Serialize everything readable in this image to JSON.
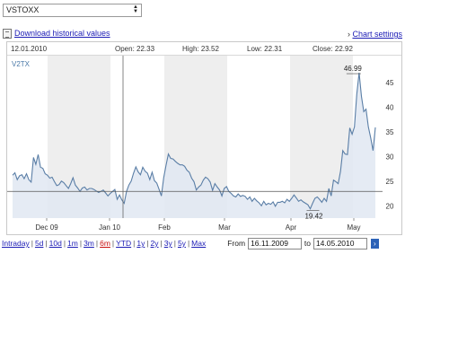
{
  "symbol_select": {
    "value": "VSTOXX",
    "arrows_icon": "up-down-arrows-icon"
  },
  "download": {
    "label": "Download historical values",
    "icon": "document-icon"
  },
  "chart_settings": {
    "label": "Chart settings",
    "icon": "chevron-right-icon"
  },
  "header": {
    "date": "12.01.2010",
    "open": "Open: 22.33",
    "high": "High: 23.52",
    "low": "Low: 22.31",
    "close": "Close: 22.92"
  },
  "range_links": [
    "Intraday",
    "5d",
    "10d",
    "1m",
    "3m",
    "6m",
    "YTD",
    "1y",
    "2y",
    "3y",
    "5y",
    "Max"
  ],
  "range_selected": "6m",
  "range_separator": "|",
  "from_label": "From",
  "from_value": "16.11.2009",
  "to_label": "to",
  "to_value": "14.05.2010",
  "go_icon": "arrow-right-icon",
  "chart_data": {
    "type": "area",
    "series": [
      {
        "name": "V2TX",
        "values": [
          26.2,
          26.7,
          25.3,
          26.1,
          26.3,
          25.5,
          26.5,
          25.3,
          24.8,
          29.8,
          28.4,
          30.4,
          27.8,
          27.6,
          26.5,
          26.2,
          25.6,
          25.8,
          24.9,
          24.1,
          24.3,
          25.0,
          24.7,
          24.1,
          23.5,
          24.5,
          25.7,
          24.2,
          23.6,
          22.9,
          23.6,
          23.8,
          23.2,
          23.5,
          23.5,
          23.3,
          23.0,
          22.7,
          22.9,
          23.2,
          22.6,
          22.0,
          22.5,
          22.9,
          23.3,
          21.3,
          22.2,
          21.2,
          20.5,
          22.9,
          24.2,
          25.0,
          26.6,
          27.9,
          26.9,
          26.3,
          27.8,
          27.0,
          26.6,
          25.3,
          26.8,
          25.1,
          24.6,
          23.3,
          22.0,
          25.7,
          28.2,
          30.5,
          29.6,
          29.5,
          29.0,
          28.6,
          28.3,
          28.3,
          28.0,
          27.2,
          26.8,
          25.6,
          24.9,
          23.2,
          23.8,
          24.2,
          25.2,
          25.8,
          25.5,
          24.8,
          23.1,
          24.5,
          23.8,
          23.2,
          22.0,
          23.5,
          23.9,
          22.9,
          22.5,
          22.0,
          21.8,
          22.4,
          21.9,
          22.1,
          21.9,
          21.3,
          21.8,
          20.9,
          21.5,
          21.0,
          20.6,
          20.0,
          20.9,
          20.2,
          20.5,
          20.3,
          20.8,
          19.9,
          20.7,
          20.7,
          20.9,
          20.6,
          21.3,
          20.9,
          21.5,
          22.2,
          21.6,
          20.9,
          21.2,
          20.8,
          20.5,
          20.2,
          19.4,
          20.5,
          21.5,
          21.8,
          21.3,
          20.7,
          21.5,
          20.9,
          23.5,
          22.0,
          25.2,
          24.9,
          24.5,
          27.0,
          31.2,
          30.5,
          30.4,
          35.8,
          34.5,
          36.0,
          42.6,
          46.99,
          42.2,
          39.1,
          39.6,
          36.0,
          33.8,
          31.2,
          35.9
        ]
      }
    ],
    "x_ticks": [
      "Dec 09",
      "Jan 10",
      "Feb",
      "Mar",
      "Apr",
      "May"
    ],
    "y_ticks": [
      20,
      25,
      30,
      35,
      40,
      45
    ],
    "ylim": [
      17.5,
      49
    ],
    "annotations": {
      "max": "46.99",
      "min": "19.42"
    },
    "cursor_value": 22.92,
    "grid": true,
    "legend": "V2TX"
  }
}
